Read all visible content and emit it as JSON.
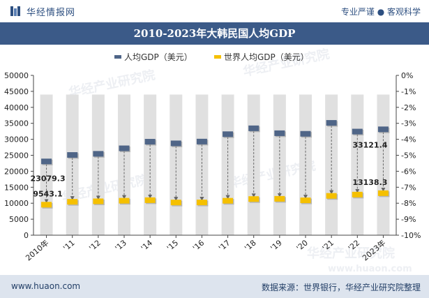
{
  "header": {
    "site_name": "华经情报网",
    "slogan": "专业严谨 ● 客观科学",
    "title": "2010-2023年大韩民国人均GDP"
  },
  "footer": {
    "url": "www.huaon.com",
    "source": "数据来源：世界银行，华经产业研究院整理"
  },
  "watermark": {
    "text": "华经产业研究院",
    "url": "www.huaon.com"
  },
  "colors": {
    "korea_series": "#4f6587",
    "world_series": "#f5c000",
    "background_bar": "#e0e0e0",
    "title_bar": "#3b5a88"
  },
  "chart_data": {
    "type": "line",
    "title": "2010-2023年大韩民国人均GDP",
    "categories": [
      "2010年",
      "'11",
      "'12",
      "'13",
      "'14",
      "'15",
      "'16",
      "'17",
      "'18",
      "'19",
      "'20",
      "'21",
      "'22",
      "2023年"
    ],
    "series": [
      {
        "name": "人均GDP（美元）",
        "color": "#4f6587",
        "values": [
          23079.3,
          25100,
          25460,
          27180,
          29250,
          28730,
          29290,
          31600,
          33440,
          31900,
          31720,
          35140,
          32420,
          33121.4
        ]
      },
      {
        "name": "世界人均GDP（美元）",
        "color": "#f5c000",
        "values": [
          9543.1,
          10450,
          10600,
          10780,
          10950,
          10230,
          10250,
          10770,
          11310,
          11380,
          10900,
          12300,
          12700,
          13138.3
        ]
      }
    ],
    "data_labels": [
      {
        "series": 0,
        "index": 0,
        "text": "23079.3"
      },
      {
        "series": 1,
        "index": 0,
        "text": "9543.1"
      },
      {
        "series": 0,
        "index": 13,
        "text": "33121.4"
      },
      {
        "series": 1,
        "index": 13,
        "text": "13138.3"
      }
    ],
    "y_left": {
      "min": 0,
      "max": 50000,
      "step": 5000,
      "ticks": [
        "0",
        "5000",
        "10000",
        "15000",
        "20000",
        "25000",
        "30000",
        "35000",
        "40000",
        "45000",
        "50000"
      ]
    },
    "y_right": {
      "min": -10,
      "max": 0,
      "step": 1,
      "ticks": [
        "0%",
        "-1%",
        "-2%",
        "-3%",
        "-4%",
        "-5%",
        "-6%",
        "-7%",
        "-8%",
        "-9%",
        "-10%"
      ]
    },
    "background_bar_value": 44000,
    "legend_position": "top-center",
    "grid": false
  }
}
